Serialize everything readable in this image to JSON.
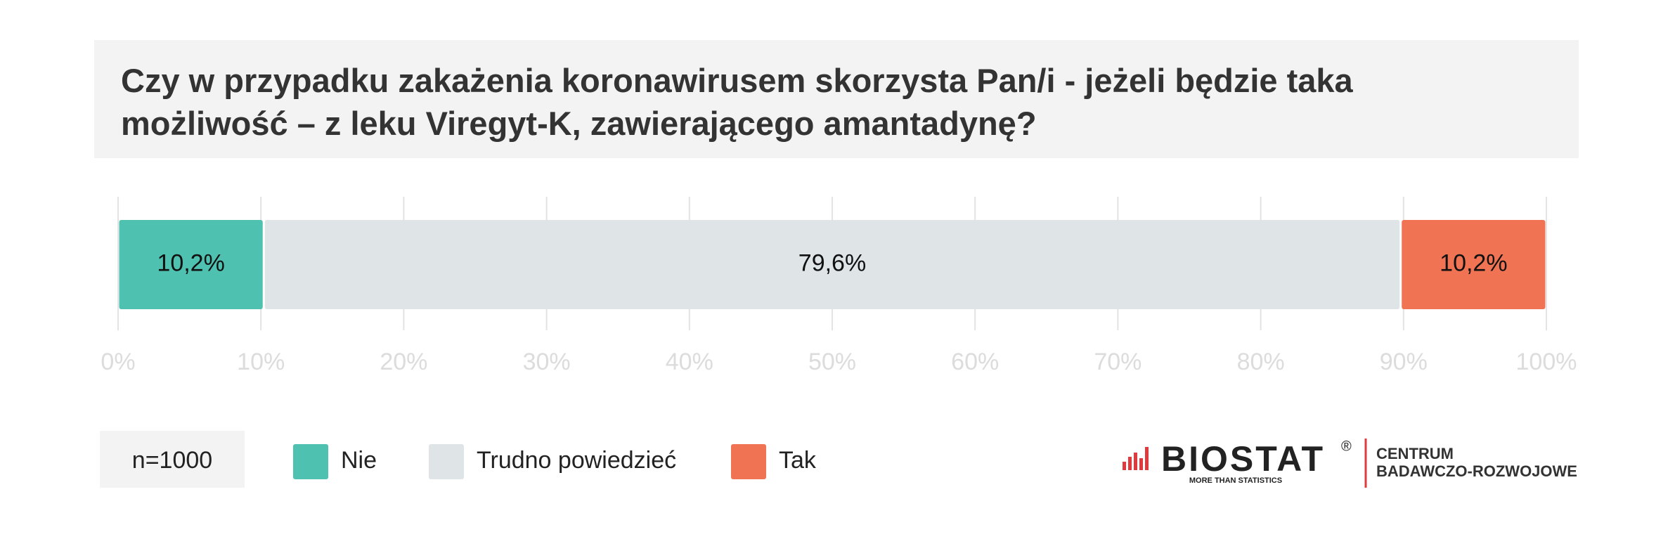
{
  "chart_data": {
    "type": "stacked-bar",
    "title": "Czy w przypadku zakażenia koronawirusem skorzysta Pan/i - jeżeli będzie taka możliwość – z leku Viregyt-K, zawierającego amantadynę?",
    "series": [
      {
        "name": "Nie",
        "color": "#4fc1b0",
        "values": [
          10.2
        ],
        "value_labels": [
          "10,2%"
        ]
      },
      {
        "name": "Trudno powiedzieć",
        "color": "#dfe5e7",
        "values": [
          79.6
        ],
        "value_labels": [
          "79,6%"
        ]
      },
      {
        "name": "Tak",
        "color": "#f07453",
        "values": [
          10.2
        ],
        "value_labels": [
          "10,2%"
        ]
      }
    ],
    "xlim": [
      0,
      100
    ],
    "xticks": [
      {
        "value": 0,
        "label": "0%"
      },
      {
        "value": 10,
        "label": "10%"
      },
      {
        "value": 20,
        "label": "20%"
      },
      {
        "value": 30,
        "label": "30%"
      },
      {
        "value": 40,
        "label": "40%"
      },
      {
        "value": 50,
        "label": "50%"
      },
      {
        "value": 60,
        "label": "60%"
      },
      {
        "value": 70,
        "label": "70%"
      },
      {
        "value": 80,
        "label": "80%"
      },
      {
        "value": 90,
        "label": "90%"
      },
      {
        "value": 100,
        "label": "100%"
      }
    ],
    "grid": true,
    "note": "n=1000"
  },
  "logo": {
    "name": "BIOSTAT",
    "mark": "®",
    "tagline": "MORE THAN STATISTICS",
    "line1": "CENTRUM",
    "line2": "BADAWCZO-ROZWOJOWE"
  }
}
